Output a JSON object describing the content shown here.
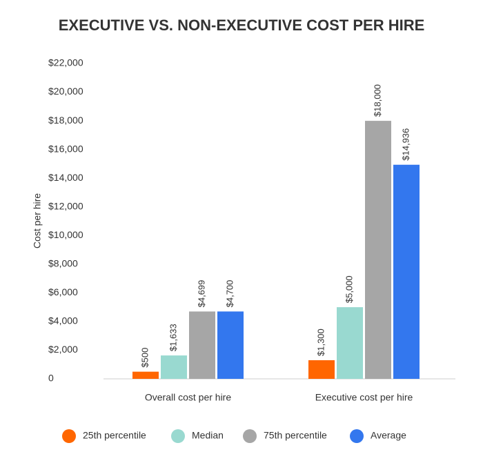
{
  "chart_data": {
    "type": "bar",
    "title": "EXECUTIVE VS. NON-EXECUTIVE COST PER HIRE",
    "y_label": "Cost per hire",
    "categories": [
      "Overall cost per hire",
      "Executive cost per hire"
    ],
    "series": [
      {
        "name": "25th percentile",
        "color": "#ff6600",
        "values": [
          500,
          1300
        ],
        "value_labels": [
          "$500",
          "$1,300"
        ]
      },
      {
        "name": "Median",
        "color": "#99d9d0",
        "values": [
          1633,
          5000
        ],
        "value_labels": [
          "$1,633",
          "$5,000"
        ]
      },
      {
        "name": "75th percentile",
        "color": "#a6a6a6",
        "values": [
          4699,
          18000
        ],
        "value_labels": [
          "$4,699",
          "$18,000"
        ]
      },
      {
        "name": "Average",
        "color": "#3377ee",
        "values": [
          4700,
          14936
        ],
        "value_labels": [
          "$4,700",
          "$14,936"
        ]
      }
    ],
    "ylim": [
      0,
      22000
    ],
    "yticks": [
      0,
      {
        "value": 2000,
        "label": "$2,000"
      },
      {
        "value": 4000,
        "label": "$4,000"
      },
      {
        "value": 6000,
        "label": "$6,000"
      },
      {
        "value": 8000,
        "label": "$8,000"
      },
      {
        "value": 10000,
        "label": "$10,000"
      },
      {
        "value": 12000,
        "label": "$12,000"
      },
      {
        "value": 14000,
        "label": "$14,000"
      },
      {
        "value": 16000,
        "label": "$16,000"
      },
      {
        "value": 18000,
        "label": "$18,000"
      },
      {
        "value": 20000,
        "label": "$20,000"
      },
      {
        "value": 22000,
        "label": "$22,000"
      }
    ],
    "grid": false,
    "legend": "bottom"
  }
}
